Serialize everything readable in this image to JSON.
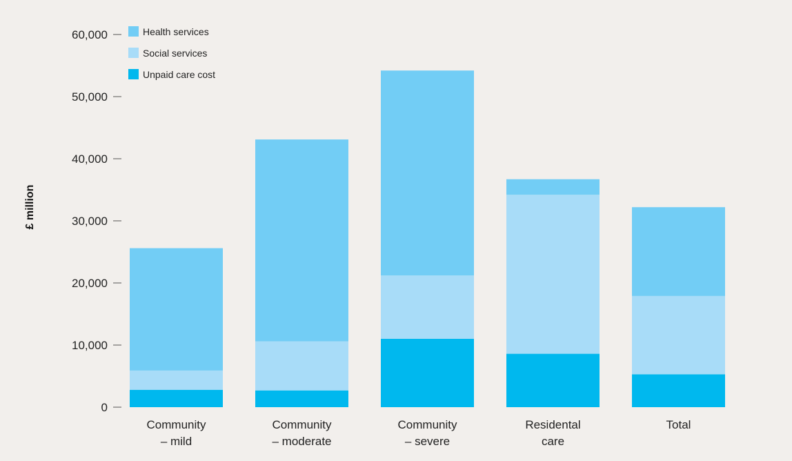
{
  "chart_data": {
    "type": "bar",
    "stacked": true,
    "categories": [
      [
        "Community",
        "– mild"
      ],
      [
        "Community",
        "– moderate"
      ],
      [
        "Community",
        "– severe"
      ],
      [
        "Residental",
        "care"
      ],
      [
        "Total"
      ]
    ],
    "series": [
      {
        "name": "Unpaid care cost",
        "color": "#00b8ee",
        "values": [
          2800,
          2700,
          11000,
          8600,
          5300
        ]
      },
      {
        "name": "Social services",
        "color": "#a8dcf8",
        "values": [
          3100,
          7900,
          10200,
          25600,
          12600
        ]
      },
      {
        "name": "Health services",
        "color": "#72cdf5",
        "values": [
          19700,
          32500,
          33000,
          2500,
          14300
        ]
      }
    ],
    "legend_order": [
      "Health services",
      "Social services",
      "Unpaid care cost"
    ],
    "legend_position": "top-left",
    "ylabel": "£ million",
    "ylim": [
      0,
      60000
    ],
    "yticks": [
      0,
      10000,
      20000,
      30000,
      40000,
      50000,
      60000
    ],
    "ytick_labels": [
      "0",
      "10,000",
      "20,000",
      "30,000",
      "40,000",
      "50,000",
      "60,000"
    ],
    "grid": false
  }
}
